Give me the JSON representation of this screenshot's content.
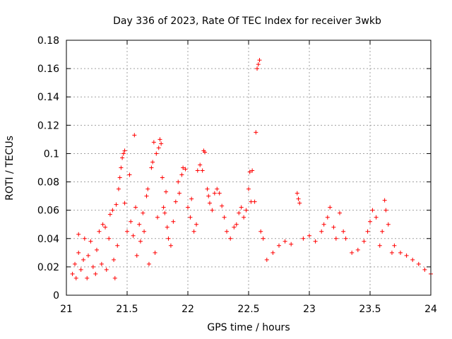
{
  "chart_data": {
    "type": "scatter",
    "title": "Day 336 of 2023, Rate Of TEC Index for receiver 3wkb",
    "xlabel": "GPS time / hours",
    "ylabel": "ROTI / TECUs",
    "xlim": [
      21,
      24
    ],
    "ylim": [
      0,
      0.18
    ],
    "xticks": [
      21,
      21.5,
      22,
      22.5,
      23,
      23.5,
      24
    ],
    "xtick_labels": [
      "21",
      "21.5",
      "22",
      "22.5",
      "23",
      "23.5",
      "24"
    ],
    "yticks": [
      0,
      0.02,
      0.04,
      0.06,
      0.08,
      0.1,
      0.12,
      0.14,
      0.16,
      0.18
    ],
    "ytick_labels": [
      "0",
      "0.02",
      "0.04",
      "0.06",
      "0.08",
      "0.1",
      "0.12",
      "0.14",
      "0.16",
      "0.18"
    ],
    "grid": true,
    "marker": "+",
    "color": "#ff0000",
    "series": [
      {
        "name": "ROTI",
        "points": [
          [
            21.05,
            0.015
          ],
          [
            21.07,
            0.022
          ],
          [
            21.08,
            0.012
          ],
          [
            21.1,
            0.03
          ],
          [
            21.1,
            0.043
          ],
          [
            21.12,
            0.018
          ],
          [
            21.14,
            0.025
          ],
          [
            21.15,
            0.04
          ],
          [
            21.17,
            0.012
          ],
          [
            21.18,
            0.028
          ],
          [
            21.2,
            0.038
          ],
          [
            21.22,
            0.02
          ],
          [
            21.24,
            0.015
          ],
          [
            21.25,
            0.032
          ],
          [
            21.27,
            0.045
          ],
          [
            21.29,
            0.022
          ],
          [
            21.3,
            0.05
          ],
          [
            21.32,
            0.048
          ],
          [
            21.33,
            0.018
          ],
          [
            21.35,
            0.04
          ],
          [
            21.36,
            0.057
          ],
          [
            21.38,
            0.06
          ],
          [
            21.39,
            0.025
          ],
          [
            21.4,
            0.012
          ],
          [
            21.41,
            0.064
          ],
          [
            21.42,
            0.035
          ],
          [
            21.43,
            0.075
          ],
          [
            21.44,
            0.083
          ],
          [
            21.45,
            0.09
          ],
          [
            21.46,
            0.097
          ],
          [
            21.47,
            0.1
          ],
          [
            21.48,
            0.102
          ],
          [
            21.48,
            0.065
          ],
          [
            21.5,
            0.045
          ],
          [
            21.52,
            0.085
          ],
          [
            21.53,
            0.052
          ],
          [
            21.55,
            0.042
          ],
          [
            21.56,
            0.113
          ],
          [
            21.57,
            0.062
          ],
          [
            21.58,
            0.028
          ],
          [
            21.6,
            0.05
          ],
          [
            21.61,
            0.038
          ],
          [
            21.63,
            0.058
          ],
          [
            21.64,
            0.045
          ],
          [
            21.66,
            0.07
          ],
          [
            21.67,
            0.075
          ],
          [
            21.68,
            0.022
          ],
          [
            21.7,
            0.09
          ],
          [
            21.71,
            0.094
          ],
          [
            21.72,
            0.108
          ],
          [
            21.73,
            0.03
          ],
          [
            21.74,
            0.1
          ],
          [
            21.75,
            0.055
          ],
          [
            21.76,
            0.104
          ],
          [
            21.77,
            0.11
          ],
          [
            21.78,
            0.107
          ],
          [
            21.79,
            0.083
          ],
          [
            21.8,
            0.062
          ],
          [
            21.81,
            0.058
          ],
          [
            21.82,
            0.073
          ],
          [
            21.83,
            0.048
          ],
          [
            21.84,
            0.04
          ],
          [
            21.86,
            0.035
          ],
          [
            21.88,
            0.052
          ],
          [
            21.9,
            0.066
          ],
          [
            21.92,
            0.08
          ],
          [
            21.93,
            0.072
          ],
          [
            21.95,
            0.085
          ],
          [
            21.96,
            0.09
          ],
          [
            21.98,
            0.089
          ],
          [
            22.0,
            0.062
          ],
          [
            22.02,
            0.055
          ],
          [
            22.03,
            0.068
          ],
          [
            22.05,
            0.045
          ],
          [
            22.07,
            0.05
          ],
          [
            22.08,
            0.088
          ],
          [
            22.1,
            0.092
          ],
          [
            22.12,
            0.088
          ],
          [
            22.13,
            0.102
          ],
          [
            22.14,
            0.101
          ],
          [
            22.16,
            0.075
          ],
          [
            22.17,
            0.07
          ],
          [
            22.18,
            0.065
          ],
          [
            22.2,
            0.06
          ],
          [
            22.22,
            0.072
          ],
          [
            22.24,
            0.075
          ],
          [
            22.26,
            0.072
          ],
          [
            22.28,
            0.063
          ],
          [
            22.3,
            0.055
          ],
          [
            22.32,
            0.045
          ],
          [
            22.35,
            0.04
          ],
          [
            22.38,
            0.048
          ],
          [
            22.4,
            0.05
          ],
          [
            22.42,
            0.058
          ],
          [
            22.44,
            0.062
          ],
          [
            22.46,
            0.055
          ],
          [
            22.48,
            0.06
          ],
          [
            22.5,
            0.075
          ],
          [
            22.51,
            0.087
          ],
          [
            22.52,
            0.066
          ],
          [
            22.53,
            0.088
          ],
          [
            22.55,
            0.066
          ],
          [
            22.56,
            0.115
          ],
          [
            22.57,
            0.16
          ],
          [
            22.58,
            0.163
          ],
          [
            22.59,
            0.166
          ],
          [
            22.6,
            0.045
          ],
          [
            22.62,
            0.04
          ],
          [
            22.65,
            0.025
          ],
          [
            22.7,
            0.03
          ],
          [
            22.75,
            0.035
          ],
          [
            22.8,
            0.038
          ],
          [
            22.85,
            0.036
          ],
          [
            22.9,
            0.072
          ],
          [
            22.91,
            0.068
          ],
          [
            22.92,
            0.065
          ],
          [
            22.95,
            0.04
          ],
          [
            23.0,
            0.042
          ],
          [
            23.05,
            0.038
          ],
          [
            23.1,
            0.045
          ],
          [
            23.12,
            0.05
          ],
          [
            23.15,
            0.055
          ],
          [
            23.17,
            0.062
          ],
          [
            23.2,
            0.048
          ],
          [
            23.22,
            0.04
          ],
          [
            23.25,
            0.058
          ],
          [
            23.28,
            0.045
          ],
          [
            23.3,
            0.04
          ],
          [
            23.35,
            0.03
          ],
          [
            23.4,
            0.032
          ],
          [
            23.45,
            0.038
          ],
          [
            23.48,
            0.045
          ],
          [
            23.5,
            0.052
          ],
          [
            23.52,
            0.06
          ],
          [
            23.55,
            0.055
          ],
          [
            23.58,
            0.035
          ],
          [
            23.6,
            0.045
          ],
          [
            23.62,
            0.067
          ],
          [
            23.63,
            0.06
          ],
          [
            23.65,
            0.05
          ],
          [
            23.68,
            0.03
          ],
          [
            23.7,
            0.035
          ],
          [
            23.75,
            0.03
          ],
          [
            23.8,
            0.028
          ],
          [
            23.85,
            0.025
          ],
          [
            23.9,
            0.022
          ],
          [
            23.95,
            0.018
          ],
          [
            24.0,
            0.015
          ]
        ]
      }
    ]
  }
}
